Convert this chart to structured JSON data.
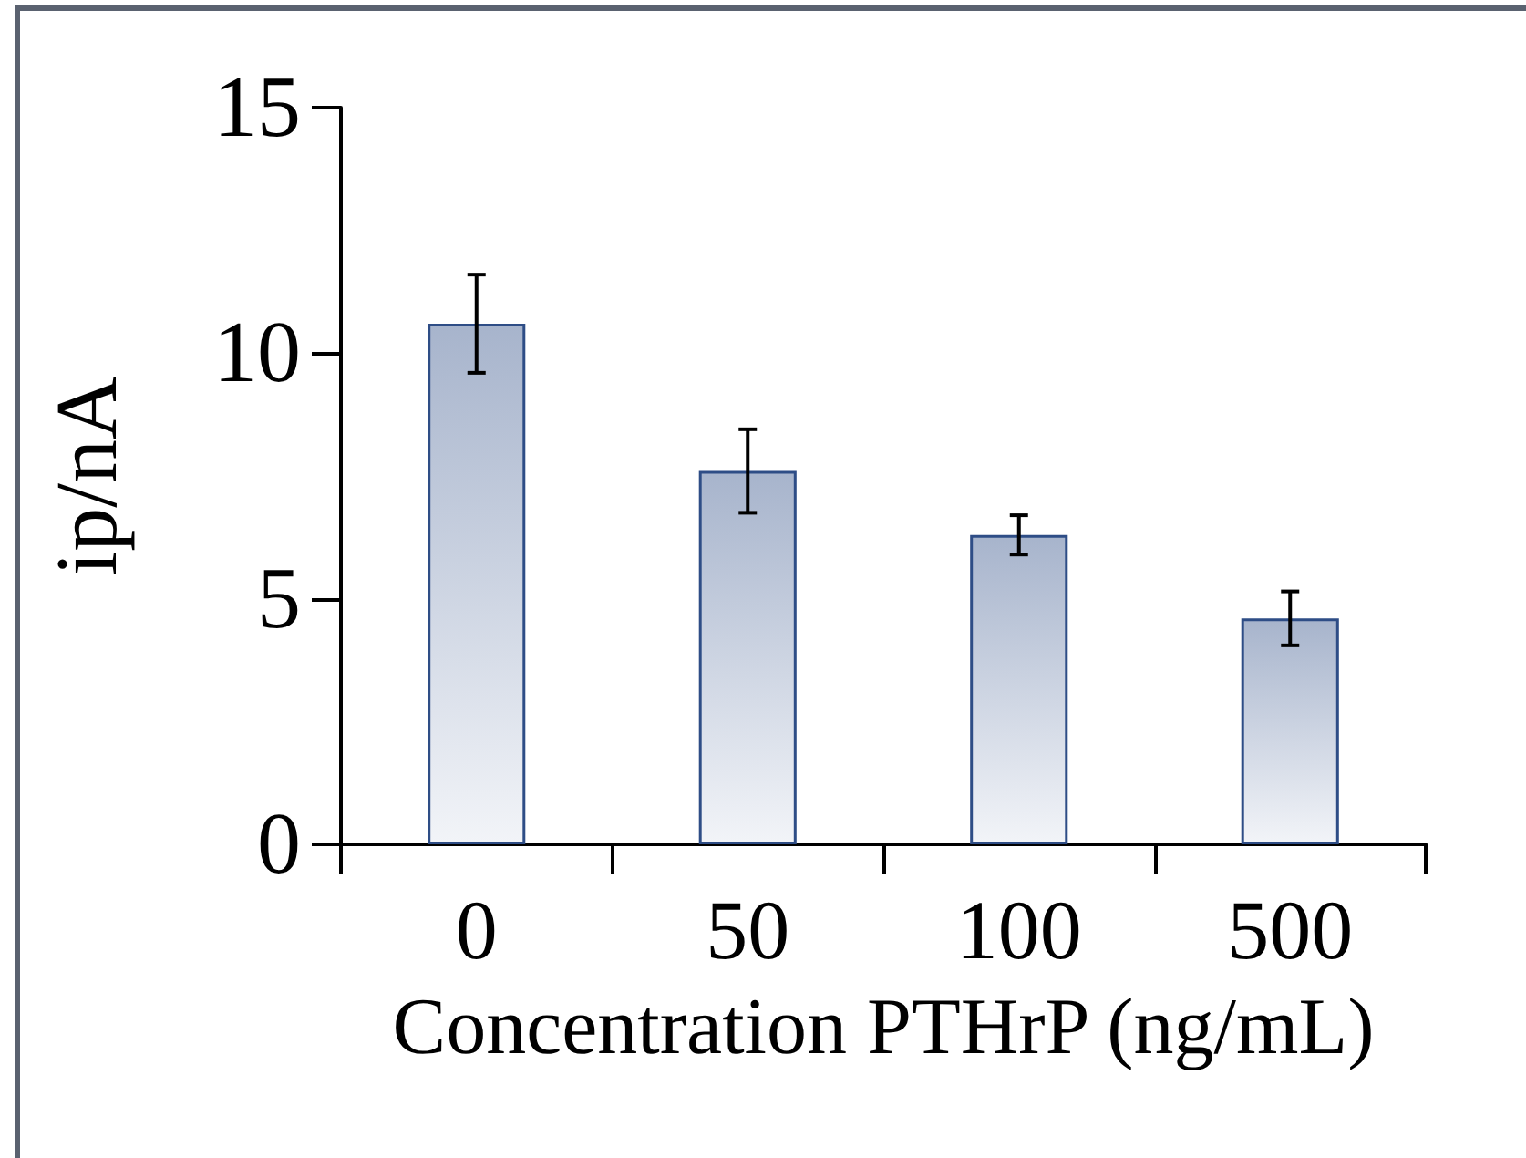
{
  "chart_data": {
    "type": "bar",
    "xlabel": "Concentration PTHrP (ng/mL)",
    "ylabel": "ip/nA",
    "categories": [
      "0",
      "50",
      "100",
      "500"
    ],
    "values": [
      10.6,
      7.6,
      6.3,
      4.6
    ],
    "errors": [
      1.0,
      0.85,
      0.4,
      0.55
    ],
    "color": "#2e4d86",
    "ylim": [
      0,
      15
    ],
    "yticks": [
      0,
      5,
      10,
      15
    ],
    "grid": false
  }
}
